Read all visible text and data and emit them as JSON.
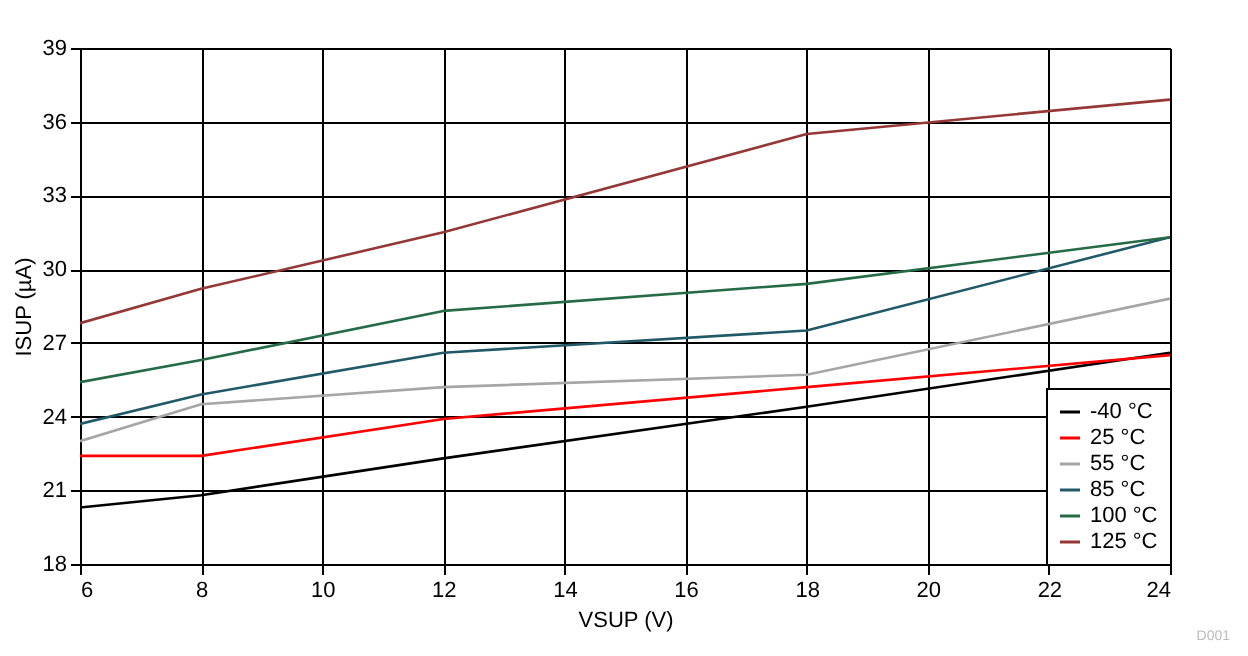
{
  "chart_data": {
    "type": "line",
    "xlabel": "VSUP (V)",
    "ylabel": "ISUP (µA)",
    "x": [
      6,
      8,
      12,
      18,
      24
    ],
    "series": [
      {
        "name": "-40 °C",
        "color": "#000000",
        "values": [
          20.3,
          20.8,
          22.3,
          24.4,
          26.6
        ]
      },
      {
        "name": "25 °C",
        "color": "#ff0000",
        "values": [
          22.4,
          22.4,
          23.9,
          25.2,
          26.5
        ]
      },
      {
        "name": "55 °C",
        "color": "#a6a6a6",
        "values": [
          23.0,
          24.5,
          25.2,
          25.7,
          28.8
        ]
      },
      {
        "name": "85 °C",
        "color": "#215968",
        "values": [
          23.7,
          24.9,
          26.6,
          27.5,
          31.3
        ]
      },
      {
        "name": "100 °C",
        "color": "#256b45",
        "values": [
          25.4,
          26.3,
          28.3,
          29.4,
          31.3
        ]
      },
      {
        "name": "125 °C",
        "color": "#953735",
        "values": [
          27.8,
          29.2,
          31.5,
          35.5,
          36.9
        ]
      }
    ],
    "xlim": [
      6,
      24
    ],
    "xticks": [
      6,
      8,
      10,
      12,
      14,
      16,
      18,
      20,
      22,
      24
    ],
    "ylim": [
      18,
      39
    ],
    "yticks": [
      18,
      21,
      24,
      27,
      30,
      33,
      36,
      39
    ],
    "grid": true,
    "legend": "bottom right",
    "marker": "none",
    "line_style": "solid",
    "annotations": [
      "D001"
    ]
  }
}
